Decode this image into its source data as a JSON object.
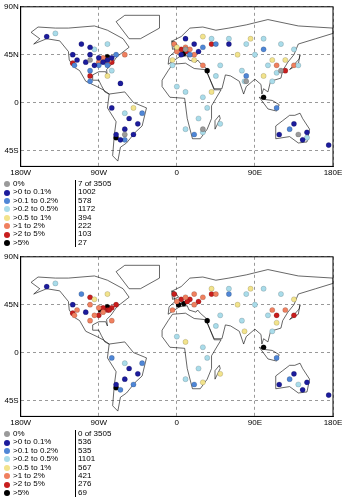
{
  "chart_data": [
    {
      "type": "scatter",
      "xlim": [
        -180,
        180
      ],
      "ylim": [
        -60,
        90
      ],
      "xticks": [
        {
          "value": -180,
          "label": "180W"
        },
        {
          "value": -90,
          "label": "90W"
        },
        0,
        {
          "value": 90,
          "label": "90E"
        },
        {
          "value": 180,
          "label": "180E"
        }
      ],
      "yticks": [
        {
          "value": 90,
          "label": "90N"
        },
        {
          "value": 45,
          "label": "45N"
        },
        0,
        {
          "value": -45,
          "label": "45S"
        }
      ],
      "grid": true,
      "marker": "circle",
      "series": [
        {
          "name": "0%",
          "color": "#9a9a9a",
          "count": 7,
          "count_label": "7 of 3505",
          "x": [
            -100,
            10,
            30,
            120,
            -60,
            140,
            80
          ],
          "y": [
            40,
            50,
            -25,
            30,
            -30,
            -30,
            20
          ]
        },
        {
          "name": ">0  to 0.1%",
          "color": "#1c1c9c",
          "count": 1002,
          "x": [
            -120,
            -115,
            -105,
            -100,
            -95,
            -90,
            -85,
            -80,
            -75,
            -110,
            -100,
            -70,
            -65,
            -60,
            -55,
            -45,
            -75,
            145,
            150,
            118,
            135,
            10,
            20,
            5,
            25,
            60,
            -150,
            -65,
            175,
            -50
          ],
          "y": [
            45,
            40,
            38,
            45,
            35,
            42,
            38,
            40,
            42,
            55,
            52,
            -30,
            -35,
            -25,
            -15,
            -20,
            -5,
            -35,
            -28,
            -30,
            -20,
            60,
            55,
            45,
            48,
            55,
            62,
            18,
            -40,
            -30
          ]
        },
        {
          "name": ">0.1 to 0.2%",
          "color": "#4f86d6",
          "count": 578,
          "x": [
            -118,
            -90,
            -80,
            -100,
            -70,
            15,
            30,
            45,
            100,
            -60,
            -40,
            20,
            130,
            115,
            80,
            -100
          ],
          "y": [
            35,
            35,
            35,
            30,
            45,
            45,
            52,
            55,
            50,
            -35,
            -10,
            -30,
            -25,
            -5,
            25,
            20
          ]
        },
        {
          "name": ">0.2 to 0.5%",
          "color": "#a9dcea",
          "count": 1172,
          "x": [
            40,
            60,
            80,
            100,
            120,
            135,
            90,
            105,
            115,
            75,
            78,
            50,
            45,
            0,
            10,
            30,
            35,
            25,
            30,
            -5,
            -80,
            -75,
            -95,
            -140,
            140,
            -60,
            110,
            50,
            150,
            10
          ],
          "y": [
            60,
            60,
            55,
            60,
            55,
            50,
            45,
            35,
            28,
            30,
            20,
            35,
            25,
            15,
            10,
            5,
            -5,
            -15,
            -28,
            35,
            55,
            30,
            50,
            65,
            35,
            -10,
            20,
            -20,
            -33,
            -25
          ]
        },
        {
          "name": ">0.5 to 1%",
          "color": "#f2e38c",
          "count": 394,
          "x": [
            70,
            85,
            20,
            -5,
            110,
            125,
            -80,
            0,
            30,
            100,
            40,
            -50
          ],
          "y": [
            45,
            60,
            40,
            40,
            40,
            40,
            25,
            52,
            62,
            25,
            10,
            -5
          ]
        },
        {
          "name": ">1 to 2%",
          "color": "#f0805f",
          "count": 222,
          "x": [
            0,
            10,
            15,
            20,
            -85,
            -78,
            -90,
            -3,
            115,
            135,
            -60,
            30
          ],
          "y": [
            48,
            52,
            50,
            45,
            42,
            40,
            38,
            55,
            35,
            35,
            45,
            35
          ]
        },
        {
          "name": ">2 to 5%",
          "color": "#c81e1e",
          "count": 103,
          "x": [
            5,
            12,
            -82,
            -75,
            -120,
            125,
            -100,
            40
          ],
          "y": [
            50,
            48,
            40,
            38,
            37,
            30,
            25,
            55
          ]
        },
        {
          "name": ">5%",
          "color": "#000000",
          "count": 27,
          "x": [
            -80,
            8,
            -70,
            100,
            35
          ],
          "y": [
            43,
            46,
            -33,
            5,
            30
          ]
        }
      ]
    },
    {
      "type": "scatter",
      "xlim": [
        -180,
        180
      ],
      "ylim": [
        -60,
        90
      ],
      "xticks": [
        {
          "value": -180,
          "label": "180W"
        },
        {
          "value": -90,
          "label": "90W"
        },
        0,
        {
          "value": 90,
          "label": "90E"
        },
        {
          "value": 180,
          "label": "180E"
        }
      ],
      "yticks": [
        {
          "value": 90,
          "label": "90N"
        },
        {
          "value": 45,
          "label": "45N"
        },
        0,
        {
          "value": -45,
          "label": "45S"
        }
      ],
      "grid": true,
      "marker": "circle",
      "series": [
        {
          "name": "0%",
          "color": "#9a9a9a",
          "count": 0,
          "count_label": "0 of 3505",
          "x": [],
          "y": []
        },
        {
          "name": ">0  to 0.1%",
          "color": "#1c1c9c",
          "count": 536,
          "x": [
            -120,
            -105,
            -70,
            -60,
            -45,
            145,
            150,
            118,
            -150,
            175,
            -55,
            135
          ],
          "y": [
            45,
            38,
            -30,
            -25,
            -20,
            -35,
            -28,
            -30,
            62,
            -40,
            -15,
            -20
          ]
        },
        {
          "name": ">0.1 to 0.2%",
          "color": "#4f86d6",
          "count": 535,
          "x": [
            -65,
            -75,
            20,
            130,
            -110,
            60,
            -50,
            115,
            -40
          ],
          "y": [
            -35,
            -5,
            -30,
            -25,
            55,
            55,
            -30,
            -5,
            -10
          ]
        },
        {
          "name": ">0.2 to 0.5%",
          "color": "#a9dcea",
          "count": 1101,
          "x": [
            60,
            80,
            100,
            120,
            90,
            75,
            45,
            0,
            30,
            35,
            25,
            50,
            105,
            -60,
            110,
            10,
            -140,
            140
          ],
          "y": [
            60,
            55,
            60,
            55,
            45,
            30,
            25,
            15,
            5,
            -5,
            -15,
            35,
            35,
            -10,
            20,
            -25,
            65,
            -30
          ]
        },
        {
          "name": ">0.5 to 1%",
          "color": "#f2e38c",
          "count": 567,
          "x": [
            40,
            70,
            85,
            135,
            115,
            78,
            10,
            -80,
            -95,
            30,
            50
          ],
          "y": [
            60,
            45,
            60,
            50,
            28,
            20,
            10,
            55,
            50,
            -28,
            -20
          ]
        },
        {
          "name": ">1 to 2%",
          "color": "#f0805f",
          "count": 421,
          "x": [
            -100,
            -95,
            -90,
            -85,
            -115,
            -100,
            0,
            10,
            20,
            30,
            45,
            110,
            125,
            -118,
            -75,
            -5,
            20
          ],
          "y": [
            45,
            35,
            42,
            38,
            40,
            30,
            48,
            52,
            45,
            52,
            55,
            40,
            40,
            35,
            30,
            40,
            55
          ]
        },
        {
          "name": ">2 to 5%",
          "color": "#c81e1e",
          "count": 276,
          "x": [
            -80,
            -75,
            -90,
            -85,
            -78,
            5,
            15,
            12,
            -3,
            115,
            135,
            -120,
            25,
            -100,
            40,
            -70
          ],
          "y": [
            40,
            42,
            35,
            42,
            40,
            50,
            50,
            48,
            55,
            35,
            35,
            37,
            48,
            52,
            55,
            45
          ]
        },
        {
          "name": ">5%",
          "color": "#000000",
          "count": 69,
          "x": [
            -80,
            8,
            -70,
            100,
            35,
            -88,
            2
          ],
          "y": [
            43,
            46,
            -33,
            5,
            30,
            40,
            45
          ]
        }
      ]
    }
  ]
}
